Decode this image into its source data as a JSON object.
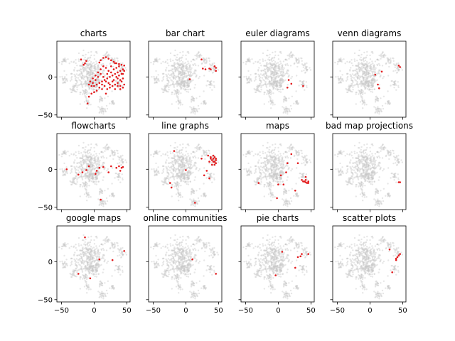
{
  "chart_data": {
    "type": "scatter",
    "layout": {
      "rows": 3,
      "cols": 4,
      "sharex": true,
      "sharey": true
    },
    "xlim": [
      -57,
      55
    ],
    "ylim": [
      -53,
      47
    ],
    "xticks": [
      -50,
      0,
      50
    ],
    "yticks": [
      -50,
      0
    ],
    "highlight_color": "#e31a1c",
    "background_color": "#c8c8c8",
    "background_clusters": [
      {
        "cx": -8,
        "cy": 5,
        "rx": 26,
        "ry": 24,
        "n": 360
      },
      {
        "cx": -2,
        "cy": -10,
        "rx": 12,
        "ry": 8,
        "n": 80
      },
      {
        "cx": -45,
        "cy": 22,
        "rx": 4,
        "ry": 4,
        "n": 18
      },
      {
        "cx": -45,
        "cy": -3,
        "rx": 5,
        "ry": 6,
        "n": 22
      },
      {
        "cx": -30,
        "cy": -15,
        "rx": 6,
        "ry": 5,
        "n": 24
      },
      {
        "cx": -14,
        "cy": -20,
        "rx": 5,
        "ry": 4,
        "n": 18
      },
      {
        "cx": -10,
        "cy": -33,
        "rx": 4,
        "ry": 4,
        "n": 16
      },
      {
        "cx": 10,
        "cy": -30,
        "rx": 4,
        "ry": 5,
        "n": 16
      },
      {
        "cx": 12,
        "cy": -43,
        "rx": 7,
        "ry": 5,
        "n": 28
      },
      {
        "cx": 28,
        "cy": -35,
        "rx": 4,
        "ry": 4,
        "n": 14
      },
      {
        "cx": 38,
        "cy": -10,
        "rx": 6,
        "ry": 8,
        "n": 22
      },
      {
        "cx": 42,
        "cy": 12,
        "rx": 7,
        "ry": 9,
        "n": 26
      },
      {
        "cx": 30,
        "cy": 22,
        "rx": 8,
        "ry": 6,
        "n": 22
      },
      {
        "cx": 20,
        "cy": 28,
        "rx": 6,
        "ry": 5,
        "n": 16
      }
    ],
    "panels": [
      {
        "title": "charts",
        "points": [
          [
            -20,
            23
          ],
          [
            -14,
            18
          ],
          [
            -12,
            21
          ],
          [
            -16,
            16
          ],
          [
            8,
            19
          ],
          [
            10,
            22
          ],
          [
            14,
            25
          ],
          [
            18,
            26
          ],
          [
            22,
            24
          ],
          [
            26,
            22
          ],
          [
            30,
            20
          ],
          [
            34,
            18
          ],
          [
            38,
            17
          ],
          [
            42,
            16
          ],
          [
            46,
            15
          ],
          [
            44,
            10
          ],
          [
            40,
            8
          ],
          [
            36,
            6
          ],
          [
            32,
            4
          ],
          [
            28,
            2
          ],
          [
            24,
            0
          ],
          [
            20,
            -2
          ],
          [
            16,
            -4
          ],
          [
            12,
            -6
          ],
          [
            8,
            -8
          ],
          [
            4,
            -10
          ],
          [
            0,
            -12
          ],
          [
            -4,
            -12
          ],
          [
            -8,
            -10
          ],
          [
            -6,
            -6
          ],
          [
            -2,
            -2
          ],
          [
            2,
            2
          ],
          [
            6,
            6
          ],
          [
            10,
            10
          ],
          [
            14,
            14
          ],
          [
            18,
            12
          ],
          [
            22,
            8
          ],
          [
            26,
            6
          ],
          [
            30,
            10
          ],
          [
            34,
            12
          ],
          [
            38,
            14
          ],
          [
            42,
            4
          ],
          [
            44,
            -2
          ],
          [
            40,
            -4
          ],
          [
            36,
            -8
          ],
          [
            32,
            -10
          ],
          [
            28,
            -12
          ],
          [
            24,
            -14
          ],
          [
            20,
            -16
          ],
          [
            16,
            -12
          ],
          [
            12,
            -10
          ],
          [
            8,
            -14
          ],
          [
            4,
            -18
          ],
          [
            0,
            -20
          ],
          [
            -4,
            -22
          ],
          [
            -8,
            -26
          ],
          [
            -10,
            -35
          ],
          [
            18,
            -22
          ],
          [
            24,
            -10
          ],
          [
            30,
            -4
          ],
          [
            34,
            0
          ],
          [
            38,
            2
          ],
          [
            42,
            -6
          ],
          [
            46,
            -10
          ],
          [
            44,
            -14
          ],
          [
            40,
            -16
          ],
          [
            36,
            -12
          ],
          [
            32,
            -16
          ],
          [
            28,
            -6
          ],
          [
            22,
            -8
          ],
          [
            18,
            -6
          ],
          [
            14,
            0
          ],
          [
            10,
            4
          ],
          [
            6,
            0
          ],
          [
            2,
            -4
          ],
          [
            -2,
            -8
          ],
          [
            20,
            4
          ],
          [
            26,
            14
          ],
          [
            32,
            18
          ],
          [
            12,
            -16
          ],
          [
            46,
            8
          ],
          [
            40,
            -12
          ],
          [
            44,
            4
          ],
          [
            36,
            -2
          ]
        ]
      },
      {
        "title": "bar chart",
        "points": [
          [
            24,
            23
          ],
          [
            26,
            11
          ],
          [
            30,
            10
          ],
          [
            36,
            11
          ],
          [
            38,
            10
          ],
          [
            44,
            14
          ],
          [
            46,
            12
          ],
          [
            46,
            8
          ],
          [
            6,
            -3
          ]
        ]
      },
      {
        "title": "euler diagrams",
        "points": [
          [
            16,
            -4
          ],
          [
            14,
            -14
          ],
          [
            20,
            -9
          ],
          [
            38,
            -12
          ]
        ]
      },
      {
        "title": "venn diagrams",
        "points": [
          [
            8,
            3
          ],
          [
            12,
            -10
          ],
          [
            18,
            7
          ],
          [
            44,
            15
          ],
          [
            46,
            13
          ],
          [
            14,
            -15
          ]
        ]
      },
      {
        "title": "flowcharts",
        "points": [
          [
            -42,
            0
          ],
          [
            -24,
            -7
          ],
          [
            -18,
            -4
          ],
          [
            -12,
            -1
          ],
          [
            -8,
            4
          ],
          [
            2,
            -6
          ],
          [
            4,
            -2
          ],
          [
            8,
            2
          ],
          [
            14,
            3
          ],
          [
            22,
            -4
          ],
          [
            26,
            4
          ],
          [
            34,
            2
          ],
          [
            38,
            4
          ],
          [
            42,
            2
          ],
          [
            44,
            3
          ],
          [
            40,
            -2
          ],
          [
            10,
            -40
          ]
        ]
      },
      {
        "title": "line graphs",
        "points": [
          [
            -18,
            24
          ],
          [
            0,
            -1
          ],
          [
            -24,
            -18
          ],
          [
            -22,
            -24
          ],
          [
            14,
            -44
          ],
          [
            24,
            14
          ],
          [
            28,
            -8
          ],
          [
            32,
            -2
          ],
          [
            34,
            18
          ],
          [
            38,
            16
          ],
          [
            42,
            14
          ],
          [
            44,
            10
          ],
          [
            46,
            8
          ],
          [
            40,
            12
          ],
          [
            36,
            10
          ],
          [
            42,
            18
          ],
          [
            44,
            16
          ],
          [
            40,
            6
          ],
          [
            46,
            14
          ],
          [
            38,
            14
          ],
          [
            42,
            10
          ],
          [
            46,
            12
          ],
          [
            36,
            -12
          ],
          [
            44,
            6
          ]
        ]
      },
      {
        "title": "maps",
        "points": [
          [
            -30,
            -18
          ],
          [
            12,
            -4
          ],
          [
            14,
            8
          ],
          [
            20,
            20
          ],
          [
            26,
            -28
          ],
          [
            30,
            8
          ],
          [
            36,
            -14
          ],
          [
            38,
            -16
          ],
          [
            40,
            -16
          ],
          [
            42,
            -17
          ],
          [
            44,
            -18
          ],
          [
            46,
            -18
          ],
          [
            42,
            -14
          ],
          [
            46,
            -16
          ],
          [
            4,
            -8
          ],
          [
            -2,
            -38
          ],
          [
            0,
            -20
          ],
          [
            8,
            -20
          ],
          [
            42,
            -10
          ]
        ]
      },
      {
        "title": "bad map projections",
        "points": [
          [
            44,
            -17
          ],
          [
            46,
            -17
          ]
        ]
      },
      {
        "title": "google maps",
        "points": [
          [
            -14,
            32
          ],
          [
            8,
            3
          ],
          [
            28,
            2
          ],
          [
            46,
            14
          ],
          [
            -24,
            -16
          ],
          [
            -6,
            -22
          ]
        ]
      },
      {
        "title": "online communities",
        "points": [
          [
            10,
            3
          ],
          [
            46,
            -16
          ]
        ]
      },
      {
        "title": "pie charts",
        "points": [
          [
            6,
            13
          ],
          [
            30,
            6
          ],
          [
            34,
            7
          ],
          [
            36,
            10
          ],
          [
            46,
            10
          ],
          [
            26,
            -8
          ],
          [
            -4,
            -18
          ]
        ]
      },
      {
        "title": "scatter plots",
        "points": [
          [
            30,
            16
          ],
          [
            40,
            4
          ],
          [
            42,
            6
          ],
          [
            44,
            8
          ],
          [
            46,
            10
          ],
          [
            40,
            2
          ],
          [
            34,
            -14
          ]
        ]
      }
    ]
  }
}
